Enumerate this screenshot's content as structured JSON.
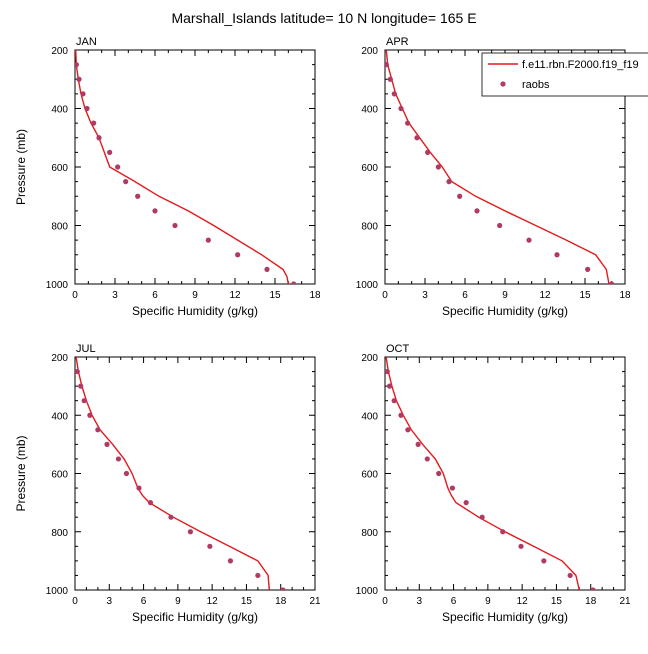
{
  "title": "Marshall_Islands  latitude= 10 N longitude= 165 E",
  "colors": {
    "model": "#e41a1c",
    "obs": "#b03a63",
    "axis": "#000000"
  },
  "legend": {
    "placement": "top-right",
    "entries": [
      {
        "label": "f.e11.rbn.F2000.f19_f19",
        "kind": "line",
        "color": "#e41a1c"
      },
      {
        "label": "raobs",
        "kind": "marker",
        "color": "#b03a63"
      }
    ]
  },
  "chart_data": [
    {
      "type": "line",
      "panel": "JAN",
      "title": "JAN",
      "xlabel": "Specific Humidity (g/kg)",
      "ylabel": "Pressure (mb)",
      "xlim": [
        0,
        18
      ],
      "xticks": [
        0,
        3,
        6,
        9,
        12,
        15,
        18
      ],
      "ylim": [
        1000,
        200
      ],
      "yticks": [
        200,
        400,
        600,
        800,
        1000
      ],
      "series": [
        {
          "name": "f.e11.rbn.F2000.f19_f19",
          "style": "line",
          "x": [
            0.05,
            0.1,
            0.25,
            0.45,
            0.75,
            1.2,
            1.8,
            2.6,
            4.5,
            6.3,
            8.5,
            10.4,
            12.2,
            14.0,
            15.6,
            15.9,
            16.0
          ],
          "y": [
            200,
            250,
            300,
            350,
            400,
            450,
            500,
            600,
            650,
            700,
            750,
            800,
            850,
            900,
            950,
            975,
            1000
          ]
        },
        {
          "name": "raobs",
          "style": "marker",
          "x": [
            0.1,
            0.3,
            0.6,
            0.9,
            1.4,
            1.8,
            2.6,
            3.2,
            3.8,
            4.7,
            6.0,
            7.5,
            10.0,
            12.2,
            14.4,
            16.4
          ],
          "y": [
            250,
            300,
            350,
            400,
            450,
            500,
            550,
            600,
            650,
            700,
            750,
            800,
            850,
            900,
            950,
            1000
          ]
        }
      ]
    },
    {
      "type": "line",
      "panel": "APR",
      "title": "APR",
      "xlabel": "Specific Humidity (g/kg)",
      "ylabel": "Pressure (mb)",
      "xlim": [
        0,
        18
      ],
      "xticks": [
        0,
        3,
        6,
        9,
        12,
        15,
        18
      ],
      "ylim": [
        1000,
        200
      ],
      "yticks": [
        200,
        400,
        600,
        800,
        1000
      ],
      "series": [
        {
          "name": "f.e11.rbn.F2000.f19_f19",
          "style": "line",
          "x": [
            0.1,
            0.2,
            0.5,
            0.8,
            1.3,
            1.8,
            2.6,
            3.4,
            4.3,
            5.0,
            6.8,
            9.0,
            11.3,
            13.6,
            15.8,
            16.6,
            16.8
          ],
          "y": [
            200,
            250,
            300,
            350,
            400,
            450,
            500,
            550,
            600,
            650,
            700,
            750,
            800,
            850,
            900,
            950,
            1000
          ]
        },
        {
          "name": "raobs",
          "style": "marker",
          "x": [
            0.1,
            0.4,
            0.7,
            1.2,
            1.7,
            2.4,
            3.2,
            4.0,
            4.8,
            5.6,
            6.9,
            8.6,
            10.8,
            12.9,
            15.2,
            17.0
          ],
          "y": [
            250,
            300,
            350,
            400,
            450,
            500,
            550,
            600,
            650,
            700,
            750,
            800,
            850,
            900,
            950,
            1000
          ]
        }
      ]
    },
    {
      "type": "line",
      "panel": "JUL",
      "title": "JUL",
      "xlabel": "Specific Humidity (g/kg)",
      "ylabel": "Pressure (mb)",
      "xlim": [
        0,
        21
      ],
      "xticks": [
        0,
        3,
        6,
        9,
        12,
        15,
        18,
        21
      ],
      "ylim": [
        1000,
        200
      ],
      "yticks": [
        200,
        400,
        600,
        800,
        1000
      ],
      "series": [
        {
          "name": "f.e11.rbn.F2000.f19_f19",
          "style": "line",
          "x": [
            0.1,
            0.3,
            0.6,
            1.0,
            1.5,
            2.2,
            3.3,
            4.3,
            5.0,
            5.5,
            5.9,
            6.5,
            8.6,
            11.0,
            13.5,
            16.0,
            16.9,
            17.0
          ],
          "y": [
            200,
            250,
            300,
            350,
            400,
            450,
            500,
            550,
            600,
            650,
            675,
            700,
            750,
            800,
            850,
            900,
            950,
            1000
          ]
        },
        {
          "name": "raobs",
          "style": "marker",
          "x": [
            0.2,
            0.5,
            0.8,
            1.3,
            2.0,
            2.8,
            3.8,
            4.5,
            5.6,
            6.6,
            8.4,
            10.1,
            11.8,
            13.6,
            16.0,
            18.2
          ],
          "y": [
            250,
            300,
            350,
            400,
            450,
            500,
            550,
            600,
            650,
            700,
            750,
            800,
            850,
            900,
            950,
            1000
          ]
        }
      ]
    },
    {
      "type": "line",
      "panel": "OCT",
      "title": "OCT",
      "xlabel": "Specific Humidity (g/kg)",
      "ylabel": "Pressure (mb)",
      "xlim": [
        0,
        21
      ],
      "xticks": [
        0,
        3,
        6,
        9,
        12,
        15,
        18,
        21
      ],
      "ylim": [
        1000,
        200
      ],
      "yticks": [
        200,
        400,
        600,
        800,
        1000
      ],
      "series": [
        {
          "name": "f.e11.rbn.F2000.f19_f19",
          "style": "line",
          "x": [
            0.1,
            0.3,
            0.6,
            1.0,
            1.6,
            2.3,
            3.3,
            4.4,
            5.1,
            5.5,
            5.8,
            6.2,
            8.2,
            10.5,
            13.0,
            15.5,
            16.7,
            17.0
          ],
          "y": [
            200,
            250,
            300,
            350,
            400,
            450,
            500,
            550,
            600,
            650,
            675,
            700,
            750,
            800,
            850,
            900,
            950,
            1000
          ]
        },
        {
          "name": "raobs",
          "style": "marker",
          "x": [
            0.2,
            0.4,
            0.8,
            1.4,
            2.0,
            2.9,
            3.7,
            4.7,
            5.9,
            7.1,
            8.5,
            10.3,
            11.9,
            13.9,
            16.2,
            18.2
          ],
          "y": [
            250,
            300,
            350,
            400,
            450,
            500,
            550,
            600,
            650,
            700,
            750,
            800,
            850,
            900,
            950,
            1000
          ]
        }
      ]
    }
  ]
}
